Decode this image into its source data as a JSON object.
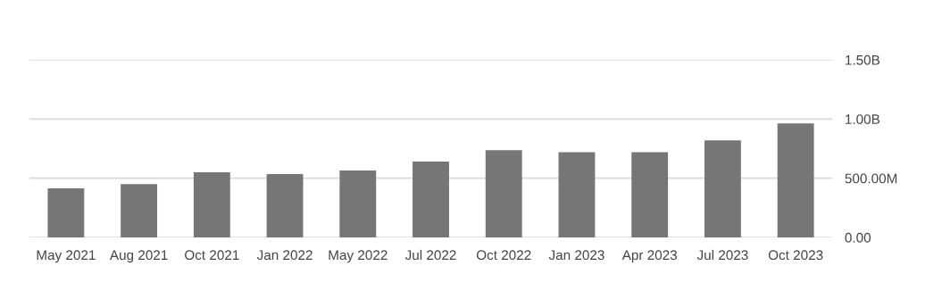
{
  "chart_data": {
    "type": "bar",
    "categories": [
      "May 2021",
      "Aug 2021",
      "Oct 2021",
      "Jan 2022",
      "May 2022",
      "Jul 2022",
      "Oct 2022",
      "Jan 2023",
      "Apr 2023",
      "Jul 2023",
      "Oct 2023"
    ],
    "values": [
      415000000,
      450000000,
      550000000,
      535000000,
      565000000,
      640000000,
      737000000,
      720000000,
      720000000,
      820000000,
      962000000
    ],
    "color": "#767676",
    "ylim": [
      0,
      1500000000
    ],
    "yticks": [
      {
        "value": 0,
        "label": "0.00"
      },
      {
        "value": 500000000,
        "label": "500.00M"
      },
      {
        "value": 1000000000,
        "label": "1.00B"
      },
      {
        "value": 1500000000,
        "label": "1.50B"
      }
    ],
    "grid": "y"
  }
}
